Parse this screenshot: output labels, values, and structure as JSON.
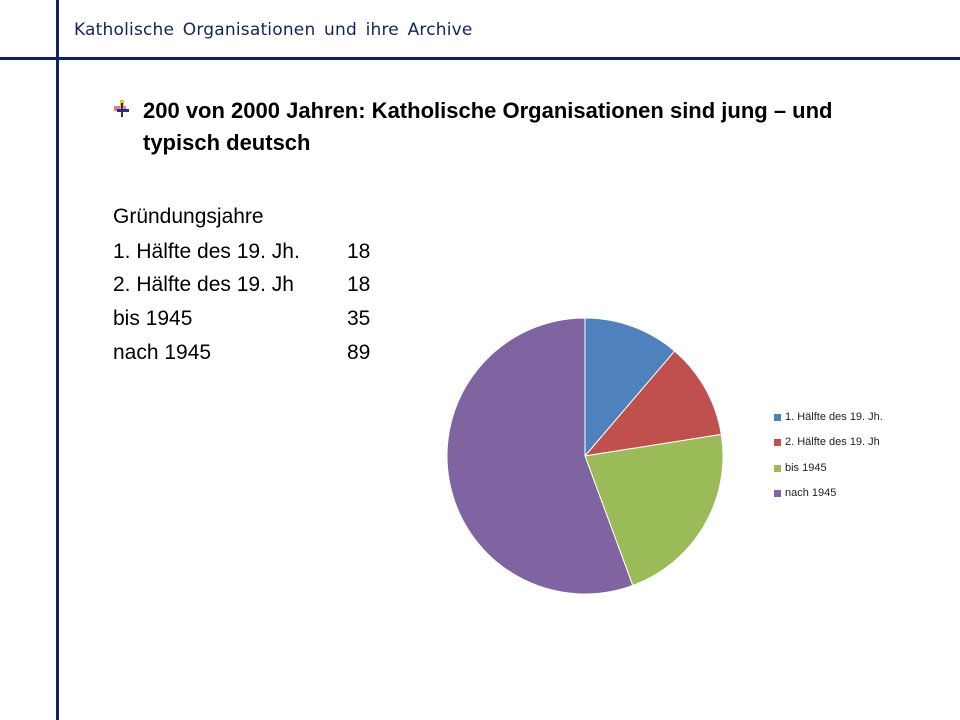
{
  "header": {
    "title": "Katholische Organisationen und ihre Archive"
  },
  "slide": {
    "heading": "200 von 2000 Jahren: Katholische Organisationen sind jung – und typisch deutsch",
    "table_title": "Gründungsjahre"
  },
  "table": [
    {
      "label": "1. Hälfte des 19. Jh.",
      "value": "18"
    },
    {
      "label": "2. Hälfte des 19. Jh",
      "value": "18"
    },
    {
      "label": "bis 1945",
      "value": "35"
    },
    {
      "label": "nach 1945",
      "value": "89"
    }
  ],
  "chart_data": {
    "type": "pie",
    "categories": [
      "1. Hälfte des 19. Jh.",
      "2. Hälfte des 19. Jh",
      "bis 1945",
      "nach 1945"
    ],
    "values": [
      18,
      18,
      35,
      89
    ],
    "colors": [
      "#4f81bd",
      "#c0504d",
      "#9bbb59",
      "#8064a2"
    ],
    "legend": "right",
    "start": "top, clockwise"
  }
}
